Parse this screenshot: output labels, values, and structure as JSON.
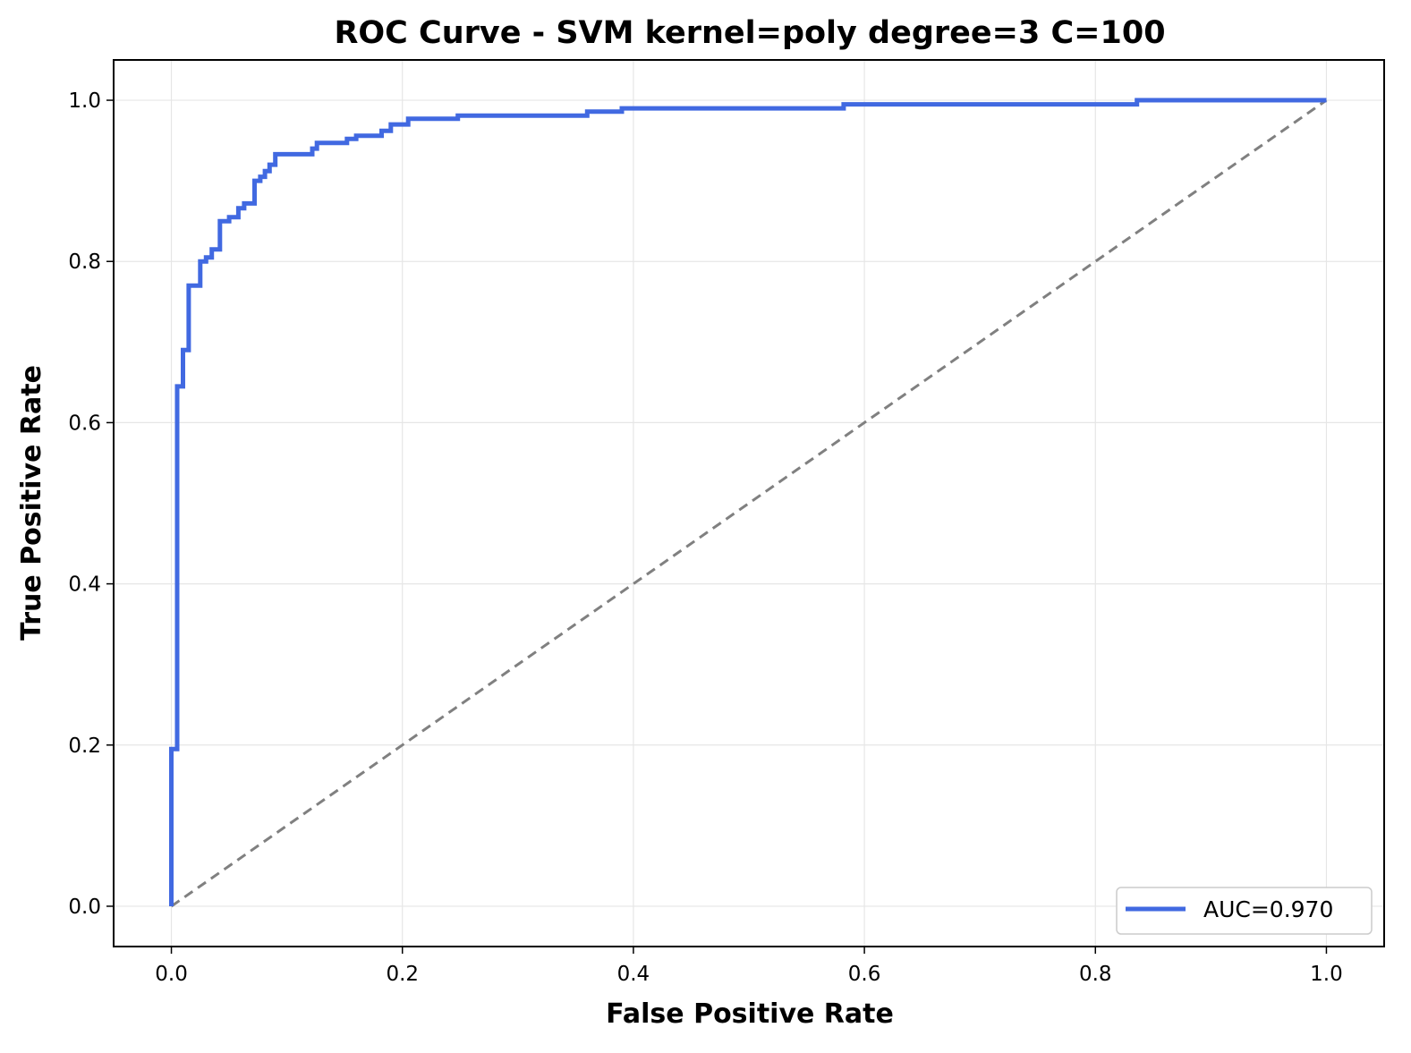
{
  "chart_data": {
    "type": "line",
    "title": "ROC Curve - SVM kernel=poly degree=3 C=100",
    "xlabel": "False Positive Rate",
    "ylabel": "True Positive Rate",
    "xlim": [
      -0.05,
      1.05
    ],
    "ylim": [
      -0.05,
      1.05
    ],
    "xticks": [
      0.0,
      0.2,
      0.4,
      0.6,
      0.8,
      1.0
    ],
    "xtick_labels": [
      "0.0",
      "0.2",
      "0.4",
      "0.6",
      "0.8",
      "1.0"
    ],
    "yticks": [
      0.0,
      0.2,
      0.4,
      0.6,
      0.8,
      1.0
    ],
    "ytick_labels": [
      "0.0",
      "0.2",
      "0.4",
      "0.6",
      "0.8",
      "1.0"
    ],
    "grid": true,
    "legend_position": "lower-right",
    "series": [
      {
        "name": "AUC=0.970",
        "color": "#4169e1",
        "style": "solid",
        "points": [
          [
            0.0,
            0.0
          ],
          [
            0.0,
            0.195
          ],
          [
            0.005,
            0.195
          ],
          [
            0.005,
            0.645
          ],
          [
            0.01,
            0.645
          ],
          [
            0.01,
            0.69
          ],
          [
            0.015,
            0.69
          ],
          [
            0.015,
            0.77
          ],
          [
            0.025,
            0.77
          ],
          [
            0.025,
            0.8
          ],
          [
            0.03,
            0.8
          ],
          [
            0.03,
            0.805
          ],
          [
            0.035,
            0.805
          ],
          [
            0.035,
            0.815
          ],
          [
            0.04,
            0.815
          ],
          [
            0.04,
            0.815
          ],
          [
            0.042,
            0.815
          ],
          [
            0.042,
            0.85
          ],
          [
            0.05,
            0.85
          ],
          [
            0.05,
            0.855
          ],
          [
            0.058,
            0.855
          ],
          [
            0.058,
            0.866
          ],
          [
            0.063,
            0.866
          ],
          [
            0.063,
            0.872
          ],
          [
            0.072,
            0.872
          ],
          [
            0.072,
            0.9
          ],
          [
            0.077,
            0.9
          ],
          [
            0.077,
            0.905
          ],
          [
            0.081,
            0.905
          ],
          [
            0.081,
            0.912
          ],
          [
            0.085,
            0.912
          ],
          [
            0.085,
            0.92
          ],
          [
            0.09,
            0.92
          ],
          [
            0.09,
            0.933
          ],
          [
            0.122,
            0.933
          ],
          [
            0.122,
            0.94
          ],
          [
            0.126,
            0.94
          ],
          [
            0.126,
            0.947
          ],
          [
            0.152,
            0.947
          ],
          [
            0.152,
            0.952
          ],
          [
            0.16,
            0.952
          ],
          [
            0.16,
            0.956
          ],
          [
            0.182,
            0.956
          ],
          [
            0.182,
            0.962
          ],
          [
            0.19,
            0.962
          ],
          [
            0.19,
            0.97
          ],
          [
            0.205,
            0.97
          ],
          [
            0.205,
            0.977
          ],
          [
            0.248,
            0.977
          ],
          [
            0.248,
            0.981
          ],
          [
            0.36,
            0.981
          ],
          [
            0.36,
            0.986
          ],
          [
            0.39,
            0.986
          ],
          [
            0.39,
            0.99
          ],
          [
            0.582,
            0.99
          ],
          [
            0.582,
            0.995
          ],
          [
            0.836,
            0.995
          ],
          [
            0.836,
            1.0
          ],
          [
            1.0,
            1.0
          ]
        ]
      },
      {
        "name": "",
        "color": "#808080",
        "style": "dashed",
        "points": [
          [
            0.0,
            0.0
          ],
          [
            1.0,
            1.0
          ]
        ]
      }
    ]
  }
}
